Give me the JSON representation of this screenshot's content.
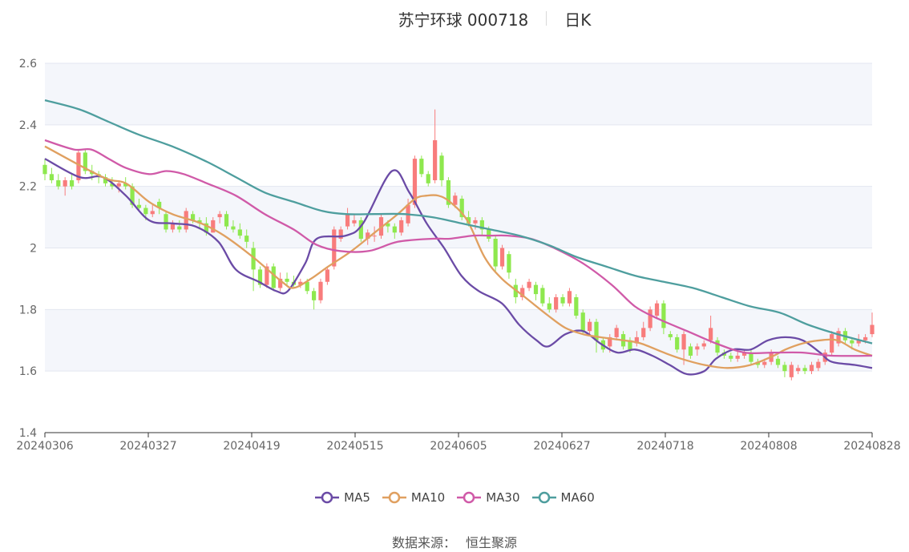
{
  "header": {
    "stock_title": "苏宁环球 000718",
    "period": "日K"
  },
  "footer": {
    "source_label": "数据来源：",
    "source_name": "恒生聚源"
  },
  "chart_data": {
    "type": "candlestick",
    "title": "苏宁环球 000718",
    "subtitle": "日K",
    "ylim": [
      1.4,
      2.6
    ],
    "yticks": [
      1.4,
      1.6,
      1.8,
      2,
      2.2,
      2.4,
      2.6
    ],
    "xticks": [
      "20240306",
      "20240327",
      "20240419",
      "20240515",
      "20240605",
      "20240627",
      "20240718",
      "20240808",
      "20240828"
    ],
    "legend_position": "bottom",
    "colors": {
      "up": "#f87c7c",
      "down": "#8ee84e",
      "band": "#f4f6fb",
      "grid": "#e3e6f0",
      "MA5": "#6b4ba6",
      "MA10": "#e0a060",
      "MA30": "#d05aa8",
      "MA60": "#4e9e9e"
    },
    "candle_count": 124,
    "candles": [
      [
        2.27,
        2.24,
        2.29,
        2.22
      ],
      [
        2.24,
        2.22,
        2.26,
        2.21
      ],
      [
        2.22,
        2.2,
        2.24,
        2.19
      ],
      [
        2.2,
        2.22,
        2.23,
        2.17
      ],
      [
        2.22,
        2.2,
        2.24,
        2.19
      ],
      [
        2.22,
        2.31,
        2.32,
        2.21
      ],
      [
        2.31,
        2.25,
        2.32,
        2.24
      ],
      [
        2.25,
        2.24,
        2.27,
        2.22
      ],
      [
        2.24,
        2.23,
        2.25,
        2.21
      ],
      [
        2.23,
        2.21,
        2.24,
        2.2
      ],
      [
        2.21,
        2.2,
        2.23,
        2.19
      ],
      [
        2.2,
        2.21,
        2.22,
        2.18
      ],
      [
        2.21,
        2.2,
        2.23,
        2.19
      ],
      [
        2.2,
        2.14,
        2.21,
        2.13
      ],
      [
        2.14,
        2.13,
        2.16,
        2.12
      ],
      [
        2.13,
        2.11,
        2.14,
        2.09
      ],
      [
        2.11,
        2.12,
        2.14,
        2.1
      ],
      [
        2.15,
        2.13,
        2.16,
        2.11
      ],
      [
        2.11,
        2.06,
        2.12,
        2.05
      ],
      [
        2.06,
        2.08,
        2.09,
        2.05
      ],
      [
        2.07,
        2.06,
        2.09,
        2.05
      ],
      [
        2.06,
        2.12,
        2.13,
        2.05
      ],
      [
        2.11,
        2.09,
        2.12,
        2.08
      ],
      [
        2.09,
        2.08,
        2.1,
        2.06
      ],
      [
        2.08,
        2.05,
        2.1,
        2.04
      ],
      [
        2.05,
        2.09,
        2.1,
        2.05
      ],
      [
        2.1,
        2.11,
        2.12,
        2.08
      ],
      [
        2.11,
        2.07,
        2.12,
        2.06
      ],
      [
        2.07,
        2.06,
        2.09,
        2.05
      ],
      [
        2.06,
        2.04,
        2.08,
        2.03
      ],
      [
        2.04,
        2.02,
        2.06,
        2.0
      ],
      [
        2.0,
        1.93,
        2.02,
        1.86
      ],
      [
        1.93,
        1.88,
        1.94,
        1.87
      ],
      [
        1.88,
        1.94,
        1.95,
        1.87
      ],
      [
        1.94,
        1.87,
        1.95,
        1.86
      ],
      [
        1.87,
        1.9,
        1.92,
        1.86
      ],
      [
        1.9,
        1.89,
        1.92,
        1.88
      ],
      [
        1.89,
        1.88,
        1.91,
        1.87
      ],
      [
        1.88,
        1.89,
        1.9,
        1.87
      ],
      [
        1.89,
        1.86,
        1.9,
        1.85
      ],
      [
        1.86,
        1.83,
        1.87,
        1.8
      ],
      [
        1.83,
        1.89,
        1.9,
        1.82
      ],
      [
        1.89,
        1.93,
        1.94,
        1.88
      ],
      [
        1.94,
        2.06,
        2.07,
        1.93
      ],
      [
        2.03,
        2.06,
        2.07,
        2.02
      ],
      [
        2.07,
        2.11,
        2.13,
        2.06
      ],
      [
        2.08,
        2.09,
        2.11,
        2.07
      ],
      [
        2.09,
        2.03,
        2.1,
        2.02
      ],
      [
        2.03,
        2.05,
        2.06,
        2.01
      ],
      [
        2.04,
        2.04,
        2.07,
        2.02
      ],
      [
        2.04,
        2.1,
        2.11,
        2.03
      ],
      [
        2.08,
        2.07,
        2.09,
        2.05
      ],
      [
        2.07,
        2.05,
        2.08,
        2.03
      ],
      [
        2.05,
        2.09,
        2.1,
        2.04
      ],
      [
        2.08,
        2.14,
        2.16,
        2.07
      ],
      [
        2.14,
        2.29,
        2.3,
        2.13
      ],
      [
        2.29,
        2.24,
        2.3,
        2.23
      ],
      [
        2.24,
        2.21,
        2.25,
        2.2
      ],
      [
        2.22,
        2.35,
        2.45,
        2.21
      ],
      [
        2.3,
        2.22,
        2.31,
        2.2
      ],
      [
        2.22,
        2.14,
        2.23,
        2.13
      ],
      [
        2.14,
        2.17,
        2.18,
        2.13
      ],
      [
        2.16,
        2.1,
        2.17,
        2.09
      ],
      [
        2.1,
        2.08,
        2.12,
        2.07
      ],
      [
        2.08,
        2.09,
        2.1,
        2.06
      ],
      [
        2.09,
        2.06,
        2.1,
        2.04
      ],
      [
        2.06,
        2.03,
        2.07,
        2.02
      ],
      [
        2.03,
        1.94,
        2.04,
        1.92
      ],
      [
        1.94,
        2.0,
        2.01,
        1.93
      ],
      [
        1.98,
        1.92,
        1.99,
        1.9
      ],
      [
        1.88,
        1.84,
        1.9,
        1.82
      ],
      [
        1.84,
        1.87,
        1.88,
        1.83
      ],
      [
        1.87,
        1.89,
        1.9,
        1.86
      ],
      [
        1.88,
        1.85,
        1.89,
        1.83
      ],
      [
        1.87,
        1.82,
        1.88,
        1.81
      ],
      [
        1.82,
        1.8,
        1.84,
        1.79
      ],
      [
        1.8,
        1.84,
        1.85,
        1.79
      ],
      [
        1.84,
        1.82,
        1.85,
        1.81
      ],
      [
        1.82,
        1.86,
        1.87,
        1.81
      ],
      [
        1.84,
        1.78,
        1.85,
        1.77
      ],
      [
        1.79,
        1.73,
        1.8,
        1.72
      ],
      [
        1.73,
        1.76,
        1.77,
        1.72
      ],
      [
        1.76,
        1.7,
        1.77,
        1.66
      ],
      [
        1.7,
        1.67,
        1.71,
        1.66
      ],
      [
        1.68,
        1.71,
        1.72,
        1.66
      ],
      [
        1.71,
        1.74,
        1.75,
        1.7
      ],
      [
        1.72,
        1.68,
        1.73,
        1.67
      ],
      [
        1.7,
        1.67,
        1.71,
        1.66
      ],
      [
        1.69,
        1.71,
        1.73,
        1.68
      ],
      [
        1.71,
        1.74,
        1.76,
        1.7
      ],
      [
        1.74,
        1.8,
        1.81,
        1.73
      ],
      [
        1.78,
        1.82,
        1.83,
        1.77
      ],
      [
        1.82,
        1.74,
        1.83,
        1.72
      ],
      [
        1.72,
        1.71,
        1.73,
        1.7
      ],
      [
        1.71,
        1.67,
        1.72,
        1.66
      ],
      [
        1.67,
        1.72,
        1.73,
        1.62
      ],
      [
        1.68,
        1.65,
        1.69,
        1.64
      ],
      [
        1.67,
        1.68,
        1.69,
        1.65
      ],
      [
        1.68,
        1.69,
        1.7,
        1.67
      ],
      [
        1.7,
        1.74,
        1.78,
        1.69
      ],
      [
        1.7,
        1.66,
        1.71,
        1.65
      ],
      [
        1.66,
        1.65,
        1.67,
        1.64
      ],
      [
        1.65,
        1.64,
        1.66,
        1.63
      ],
      [
        1.64,
        1.65,
        1.67,
        1.63
      ],
      [
        1.65,
        1.66,
        1.67,
        1.64
      ],
      [
        1.66,
        1.63,
        1.67,
        1.62
      ],
      [
        1.63,
        1.62,
        1.64,
        1.61
      ],
      [
        1.62,
        1.63,
        1.64,
        1.61
      ],
      [
        1.63,
        1.66,
        1.67,
        1.62
      ],
      [
        1.64,
        1.62,
        1.65,
        1.61
      ],
      [
        1.62,
        1.6,
        1.63,
        1.58
      ],
      [
        1.58,
        1.62,
        1.63,
        1.57
      ],
      [
        1.6,
        1.61,
        1.62,
        1.59
      ],
      [
        1.61,
        1.6,
        1.62,
        1.59
      ],
      [
        1.6,
        1.62,
        1.63,
        1.59
      ],
      [
        1.61,
        1.63,
        1.64,
        1.6
      ],
      [
        1.63,
        1.66,
        1.67,
        1.62
      ],
      [
        1.66,
        1.72,
        1.73,
        1.65
      ],
      [
        1.69,
        1.73,
        1.74,
        1.68
      ],
      [
        1.73,
        1.7,
        1.74,
        1.69
      ],
      [
        1.7,
        1.69,
        1.71,
        1.67
      ],
      [
        1.69,
        1.7,
        1.72,
        1.68
      ],
      [
        1.7,
        1.71,
        1.72,
        1.69
      ],
      [
        1.72,
        1.75,
        1.79,
        1.71
      ]
    ],
    "series": [
      {
        "name": "MA5",
        "knots": [
          [
            0,
            2.29
          ],
          [
            6,
            2.23
          ],
          [
            10,
            2.23
          ],
          [
            14,
            2.17
          ],
          [
            18,
            2.09
          ],
          [
            22,
            2.08
          ],
          [
            26,
            2.07
          ],
          [
            30,
            2.02
          ],
          [
            33,
            1.93
          ],
          [
            37,
            1.89
          ],
          [
            40,
            1.86
          ],
          [
            42,
            1.86
          ],
          [
            45,
            1.95
          ],
          [
            47,
            2.03
          ],
          [
            52,
            2.04
          ],
          [
            55,
            2.08
          ],
          [
            60,
            2.25
          ],
          [
            63,
            2.18
          ],
          [
            66,
            2.08
          ],
          [
            69,
            2.0
          ],
          [
            72,
            1.91
          ],
          [
            75,
            1.86
          ],
          [
            79,
            1.82
          ],
          [
            82,
            1.75
          ],
          [
            85,
            1.7
          ],
          [
            87,
            1.68
          ],
          [
            90,
            1.72
          ],
          [
            93,
            1.73
          ],
          [
            96,
            1.69
          ],
          [
            99,
            1.66
          ],
          [
            102,
            1.67
          ],
          [
            105,
            1.65
          ],
          [
            108,
            1.62
          ],
          [
            111,
            1.59
          ],
          [
            114,
            1.6
          ],
          [
            116,
            1.64
          ],
          [
            119,
            1.67
          ],
          [
            122,
            1.67
          ],
          [
            125,
            1.7
          ],
          [
            128,
            1.71
          ],
          [
            131,
            1.7
          ],
          [
            134,
            1.66
          ],
          [
            136,
            1.63
          ],
          [
            140,
            1.62
          ],
          [
            143,
            1.61
          ]
        ]
      },
      {
        "name": "MA10",
        "knots": [
          [
            0,
            2.33
          ],
          [
            10,
            2.23
          ],
          [
            14,
            2.21
          ],
          [
            18,
            2.15
          ],
          [
            22,
            2.11
          ],
          [
            27,
            2.08
          ],
          [
            31,
            2.04
          ],
          [
            36,
            1.97
          ],
          [
            41,
            1.89
          ],
          [
            43,
            1.87
          ],
          [
            46,
            1.9
          ],
          [
            49,
            1.94
          ],
          [
            53,
            1.99
          ],
          [
            57,
            2.05
          ],
          [
            61,
            2.11
          ],
          [
            64,
            2.16
          ],
          [
            66,
            2.17
          ],
          [
            68,
            2.17
          ],
          [
            70,
            2.15
          ],
          [
            73,
            2.09
          ],
          [
            76,
            1.97
          ],
          [
            79,
            1.9
          ],
          [
            83,
            1.84
          ],
          [
            87,
            1.78
          ],
          [
            90,
            1.74
          ],
          [
            93,
            1.72
          ],
          [
            96,
            1.71
          ],
          [
            100,
            1.7
          ],
          [
            103,
            1.69
          ],
          [
            107,
            1.66
          ],
          [
            110,
            1.64
          ],
          [
            114,
            1.62
          ],
          [
            118,
            1.61
          ],
          [
            122,
            1.62
          ],
          [
            126,
            1.65
          ],
          [
            128,
            1.67
          ],
          [
            131,
            1.69
          ],
          [
            134,
            1.7
          ],
          [
            137,
            1.7
          ],
          [
            140,
            1.67
          ],
          [
            143,
            1.65
          ]
        ]
      },
      {
        "name": "MA30",
        "knots": [
          [
            0,
            2.35
          ],
          [
            5,
            2.32
          ],
          [
            8,
            2.32
          ],
          [
            11,
            2.29
          ],
          [
            14,
            2.26
          ],
          [
            18,
            2.24
          ],
          [
            21,
            2.25
          ],
          [
            24,
            2.24
          ],
          [
            28,
            2.21
          ],
          [
            33,
            2.17
          ],
          [
            38,
            2.11
          ],
          [
            43,
            2.06
          ],
          [
            47,
            2.01
          ],
          [
            51,
            1.99
          ],
          [
            56,
            1.99
          ],
          [
            61,
            2.02
          ],
          [
            67,
            2.03
          ],
          [
            70,
            2.03
          ],
          [
            74,
            2.04
          ],
          [
            77,
            2.04
          ],
          [
            80,
            2.04
          ],
          [
            84,
            2.03
          ],
          [
            88,
            2.0
          ],
          [
            93,
            1.95
          ],
          [
            98,
            1.88
          ],
          [
            102,
            1.81
          ],
          [
            106,
            1.77
          ],
          [
            111,
            1.73
          ],
          [
            116,
            1.69
          ],
          [
            121,
            1.66
          ],
          [
            126,
            1.66
          ],
          [
            131,
            1.66
          ],
          [
            136,
            1.65
          ],
          [
            143,
            1.65
          ]
        ]
      },
      {
        "name": "MA60",
        "knots": [
          [
            0,
            2.48
          ],
          [
            6,
            2.45
          ],
          [
            11,
            2.41
          ],
          [
            16,
            2.37
          ],
          [
            22,
            2.33
          ],
          [
            28,
            2.28
          ],
          [
            33,
            2.23
          ],
          [
            38,
            2.18
          ],
          [
            43,
            2.15
          ],
          [
            48,
            2.12
          ],
          [
            52,
            2.11
          ],
          [
            57,
            2.11
          ],
          [
            62,
            2.11
          ],
          [
            67,
            2.1
          ],
          [
            72,
            2.08
          ],
          [
            77,
            2.06
          ],
          [
            82,
            2.04
          ],
          [
            87,
            2.01
          ],
          [
            92,
            1.97
          ],
          [
            97,
            1.94
          ],
          [
            102,
            1.91
          ],
          [
            107,
            1.89
          ],
          [
            112,
            1.87
          ],
          [
            117,
            1.84
          ],
          [
            122,
            1.81
          ],
          [
            127,
            1.79
          ],
          [
            132,
            1.75
          ],
          [
            137,
            1.72
          ],
          [
            143,
            1.69
          ]
        ]
      }
    ]
  }
}
